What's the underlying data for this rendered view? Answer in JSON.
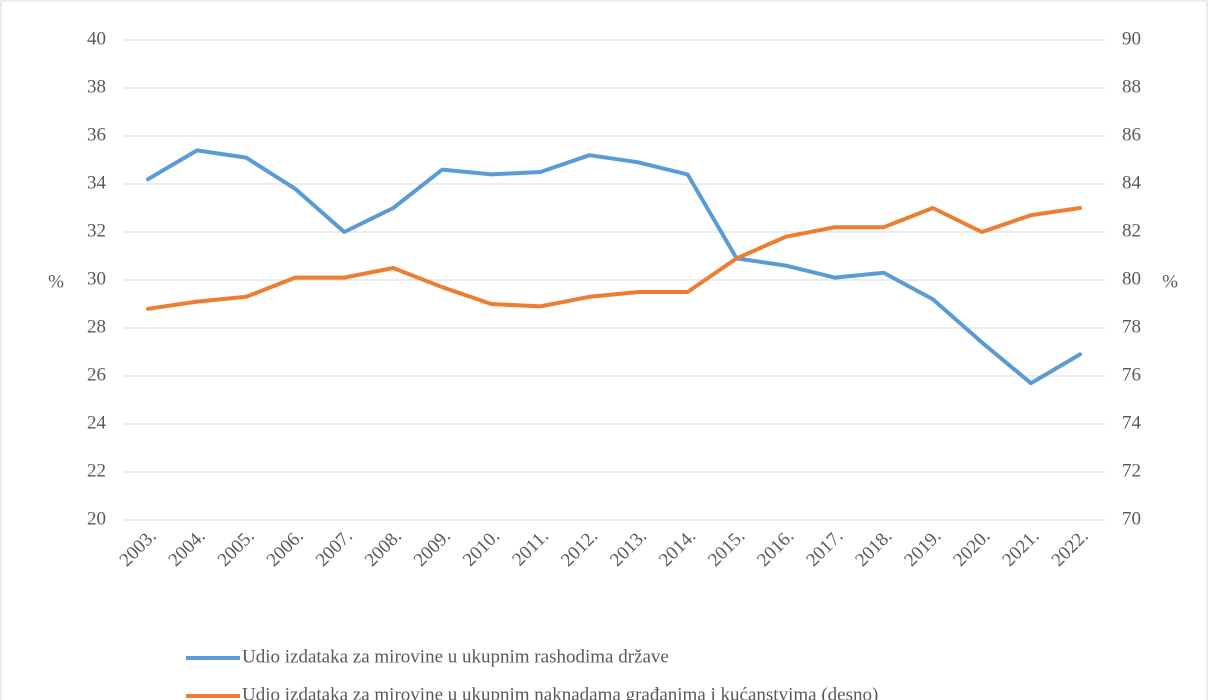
{
  "chart_data": {
    "type": "line",
    "y_label": "%",
    "y2_label": "%",
    "categories": [
      "2003.",
      "2004.",
      "2005.",
      "2006.",
      "2007.",
      "2008.",
      "2009.",
      "2010.",
      "2011.",
      "2012.",
      "2013.",
      "2014.",
      "2015.",
      "2016.",
      "2017.",
      "2018.",
      "2019.",
      "2020.",
      "2021.",
      "2022."
    ],
    "series": [
      {
        "name": "Udio izdataka za mirovine u ukupnim rashodima države",
        "color": "#5b9bd5",
        "values": [
          34.2,
          35.4,
          35.1,
          33.8,
          32.0,
          33.0,
          34.6,
          34.4,
          34.5,
          35.2,
          34.9,
          34.4,
          30.9,
          30.6,
          30.1,
          30.3,
          29.2,
          27.4,
          25.7,
          26.9
        ]
      },
      {
        "name": "Udio izdataka za mirovine u ukupnim naknadama građanima i kućanstvima (desno)",
        "color": "#ed7d31",
        "axis": "y2",
        "values": [
          78.8,
          79.1,
          79.3,
          80.1,
          80.1,
          80.5,
          79.7,
          79.0,
          78.9,
          79.3,
          79.5,
          79.5,
          80.9,
          81.8,
          82.2,
          82.2,
          83.0,
          82.0,
          82.7,
          83.0
        ]
      }
    ],
    "ylim": [
      20,
      40
    ],
    "yticks": [
      20,
      22,
      24,
      26,
      28,
      30,
      32,
      34,
      36,
      38,
      40
    ],
    "y2lim": [
      70,
      90
    ],
    "y2ticks": [
      70,
      72,
      74,
      76,
      78,
      80,
      82,
      84,
      86,
      88,
      90
    ],
    "grid": true,
    "legend": "bottom"
  }
}
